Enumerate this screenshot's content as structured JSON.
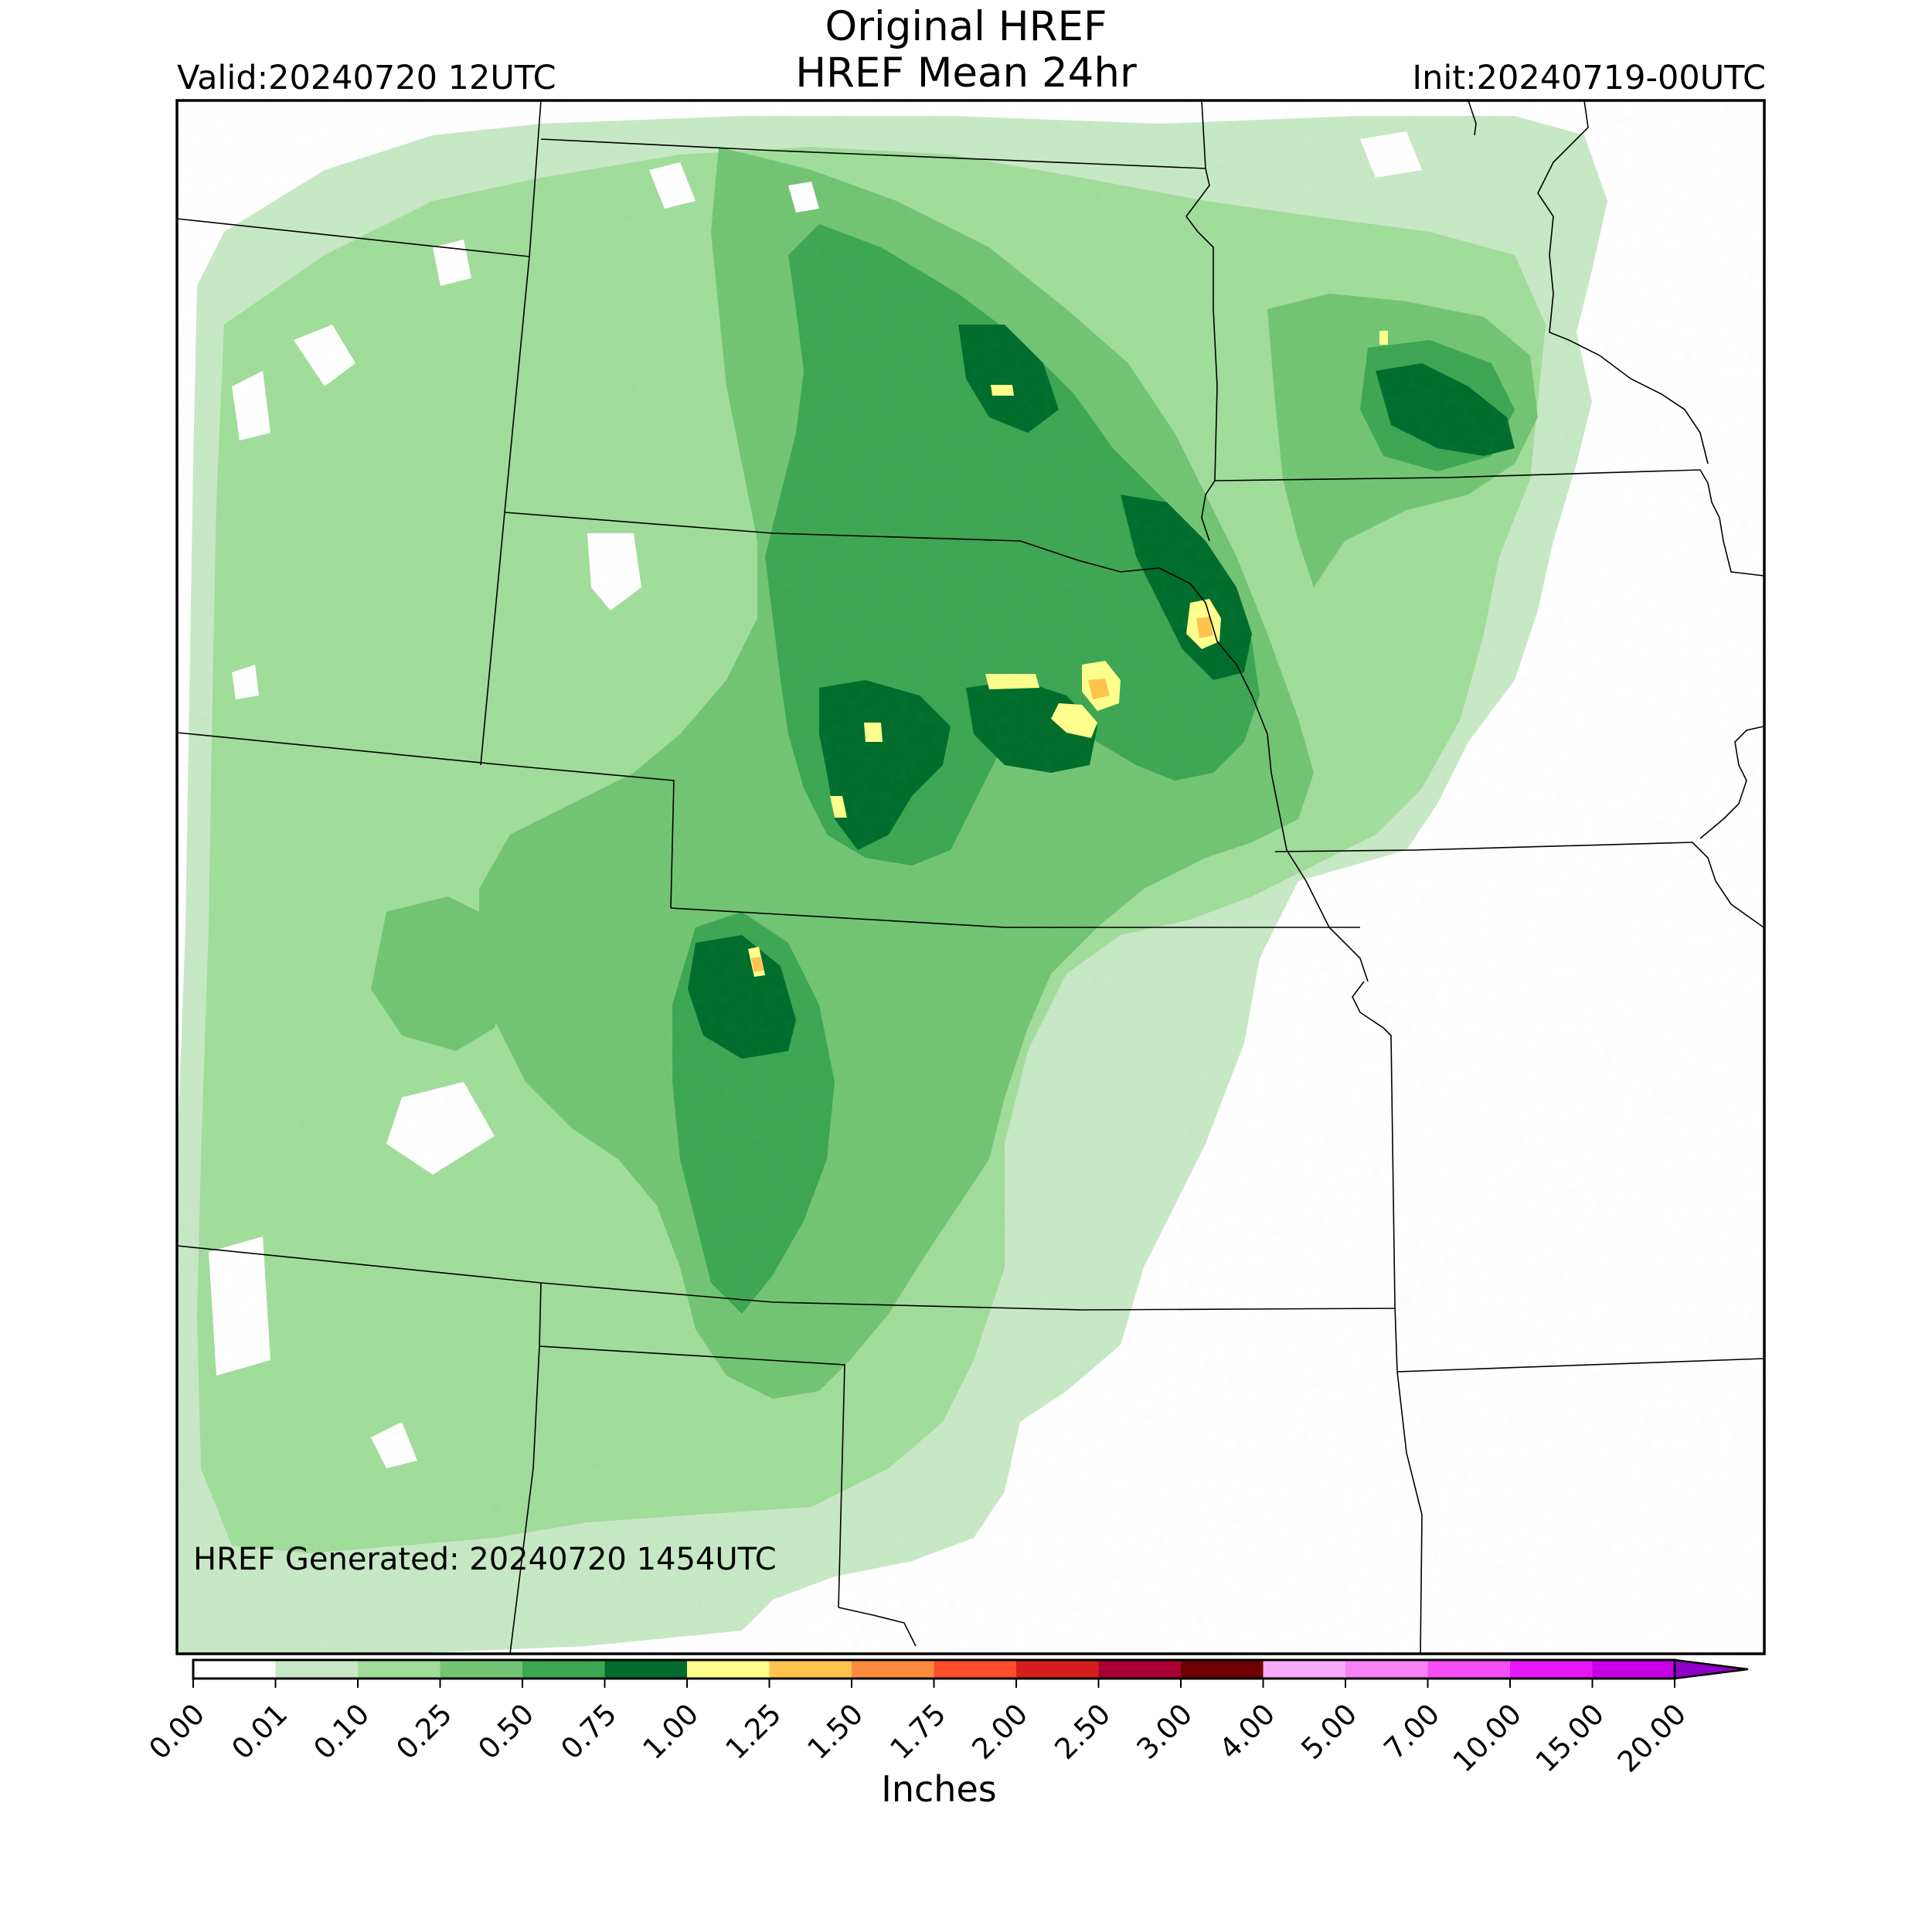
{
  "header": {
    "title_line1": "Original HREF",
    "title_line2": "HREF Mean 24hr",
    "valid": "Valid:20240720 12UTC",
    "init": "Init:20240719-00UTC"
  },
  "map": {
    "generated_label": "HREF Generated: 20240720 1454UTC",
    "background": "#ffffff"
  },
  "colorbar": {
    "units_label": "Inches",
    "ticks": [
      "0.00",
      "0.01",
      "0.10",
      "0.25",
      "0.50",
      "0.75",
      "1.00",
      "1.25",
      "1.50",
      "1.75",
      "2.00",
      "2.50",
      "3.00",
      "4.00",
      "5.00",
      "7.00",
      "10.00",
      "15.00",
      "20.00"
    ],
    "colors": [
      "#ffffff",
      "#c7e8c4",
      "#a0dc9a",
      "#72c474",
      "#3da653",
      "#006d2c",
      "#ffff8c",
      "#ffc34d",
      "#ff8c3c",
      "#ff4c2a",
      "#d51f1f",
      "#a80032",
      "#6e0000",
      "#f7aaf7",
      "#f682f6",
      "#f64ef6",
      "#e617f6",
      "#c800e6",
      "#8f00c8"
    ]
  }
}
